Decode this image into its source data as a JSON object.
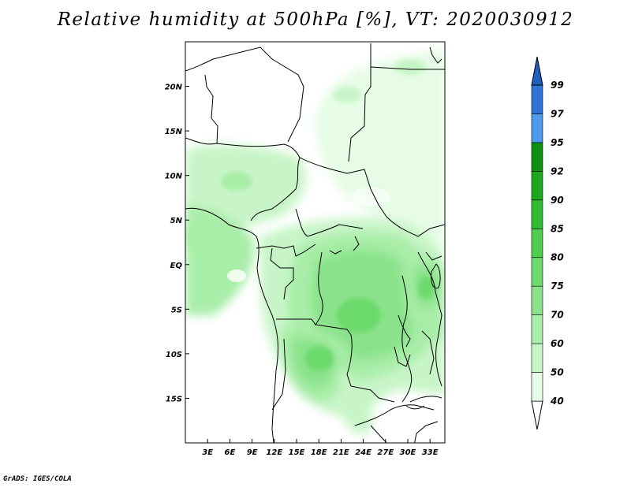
{
  "title": "Relative humidity at 500hPa [%], VT: 2020030912",
  "credit": "GrADS: IGES/COLA",
  "map": {
    "region": "Central Africa",
    "lon_range": [
      0,
      35
    ],
    "lat_range": [
      -20,
      25
    ],
    "lon_ticks": [
      {
        "value": 3,
        "label": "3E"
      },
      {
        "value": 6,
        "label": "6E"
      },
      {
        "value": 9,
        "label": "9E"
      },
      {
        "value": 12,
        "label": "12E"
      },
      {
        "value": 15,
        "label": "15E"
      },
      {
        "value": 18,
        "label": "18E"
      },
      {
        "value": 21,
        "label": "21E"
      },
      {
        "value": 24,
        "label": "24E"
      },
      {
        "value": 27,
        "label": "27E"
      },
      {
        "value": 30,
        "label": "30E"
      },
      {
        "value": 33,
        "label": "33E"
      }
    ],
    "lat_ticks": [
      {
        "value": 20,
        "label": "20N"
      },
      {
        "value": 15,
        "label": "15N"
      },
      {
        "value": 10,
        "label": "10N"
      },
      {
        "value": 5,
        "label": "5N"
      },
      {
        "value": 0,
        "label": "EQ"
      },
      {
        "value": -5,
        "label": "5S"
      },
      {
        "value": -10,
        "label": "10S"
      },
      {
        "value": -15,
        "label": "15S"
      }
    ]
  },
  "colorbar": {
    "levels": [
      {
        "label": "40",
        "color": "#ffffff"
      },
      {
        "label": "50",
        "color": "#e6fce6"
      },
      {
        "label": "60",
        "color": "#c8f5c8"
      },
      {
        "label": "70",
        "color": "#a8eda8"
      },
      {
        "label": "75",
        "color": "#8ae38a"
      },
      {
        "label": "80",
        "color": "#6cd96c"
      },
      {
        "label": "85",
        "color": "#4ecd4e"
      },
      {
        "label": "90",
        "color": "#32bd32"
      },
      {
        "label": "92",
        "color": "#1ca81c"
      },
      {
        "label": "95",
        "color": "#0f900f"
      },
      {
        "label": "97",
        "color": "#4d9bea"
      },
      {
        "label": "99",
        "color": "#2e74d4"
      }
    ],
    "top_color": "#1f5fbf"
  }
}
